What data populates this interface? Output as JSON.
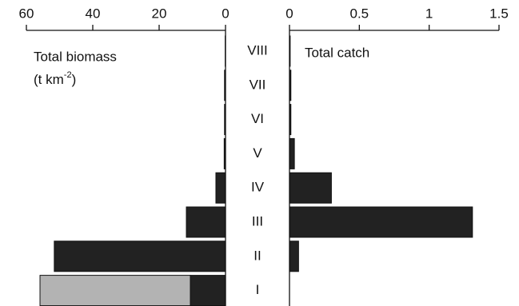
{
  "chart_data": [
    {
      "type": "hbar",
      "title": "Total biomass",
      "unit_prefix": "(t km",
      "unit_exp": "-2",
      "unit_suffix": ")",
      "categories": [
        "VIII",
        "VII",
        "VI",
        "V",
        "IV",
        "III",
        "II",
        "I"
      ],
      "series": [
        {
          "color": "#222222",
          "values": [
            0.1,
            0.3,
            0.3,
            0.4,
            2.9,
            11.8,
            51.6,
            10.6
          ]
        },
        {
          "color": "#b3b3b3",
          "values": [
            null,
            null,
            null,
            null,
            null,
            null,
            null,
            45.3
          ]
        }
      ],
      "xlim": [
        60,
        0
      ],
      "xticks": [
        60,
        40,
        20,
        0
      ]
    },
    {
      "type": "hbar",
      "title": "Total catch",
      "series": [
        {
          "color": "#222222",
          "values": [
            0.005,
            0.01,
            0.01,
            0.035,
            0.3,
            1.31,
            0.065,
            0
          ]
        }
      ],
      "xlim": [
        0,
        1.5
      ],
      "xticks": [
        0,
        0.5,
        1,
        1.5
      ]
    }
  ]
}
